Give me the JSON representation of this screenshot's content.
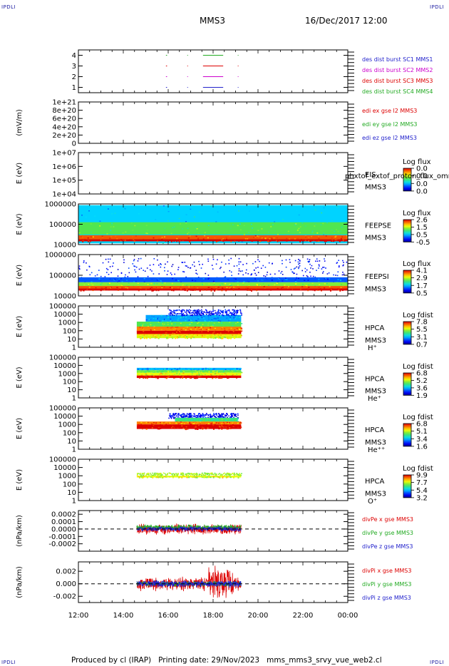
{
  "page": {
    "corner_label": "IPDLI",
    "mission": "MMS3",
    "date": "16/Dec/2017 12:00",
    "footer_producer": "Produced by cl (IRAP)",
    "footer_date": "Printing date: 29/Nov/2023",
    "footer_file": "mms_mms3_srvy_vue_web2.cl"
  },
  "chart_data": {
    "type": "stacked-timeseries",
    "x_ticks": [
      "12:00",
      "14:00",
      "16:00",
      "18:00",
      "20:00",
      "22:00",
      "00:00"
    ],
    "x_range_hours": [
      12,
      24
    ],
    "data_span_hours": [
      14.6,
      19.25
    ],
    "panels": [
      {
        "id": "des-burst",
        "type": "timeline",
        "ylabel": "",
        "yticks": [
          "4",
          "3",
          "2",
          "1"
        ],
        "ylim": [
          0.5,
          4.5
        ],
        "legend": [
          {
            "text": "des dist burst SC1 MMS1",
            "color": "#2222cc"
          },
          {
            "text": "des dist burst SC2 MMS2",
            "color": "#cc00cc"
          },
          {
            "text": "des dist burst SC3 MMS3",
            "color": "#dd0000"
          },
          {
            "text": "des dist burst SC4 MMS4",
            "color": "#22aa22"
          }
        ],
        "series": [
          {
            "level": 4,
            "color": "#22aa22",
            "intervals": [
              [
                15.9,
                15.95
              ],
              [
                16.85,
                16.88
              ],
              [
                17.55,
                18.45
              ],
              [
                19.1,
                19.13
              ]
            ]
          },
          {
            "level": 3,
            "color": "#dd0000",
            "intervals": [
              [
                15.9,
                15.95
              ],
              [
                16.85,
                16.88
              ],
              [
                17.55,
                18.45
              ],
              [
                19.1,
                19.13
              ]
            ]
          },
          {
            "level": 2,
            "color": "#cc00cc",
            "intervals": [
              [
                15.9,
                15.95
              ],
              [
                16.85,
                16.88
              ],
              [
                17.55,
                18.45
              ],
              [
                19.1,
                19.13
              ]
            ]
          },
          {
            "level": 1,
            "color": "#2222cc",
            "intervals": [
              [
                15.9,
                15.95
              ],
              [
                16.85,
                16.88
              ],
              [
                17.55,
                18.45
              ],
              [
                19.1,
                19.13
              ]
            ]
          }
        ]
      },
      {
        "id": "edi-e",
        "type": "line",
        "ylabel": "(mV/m)",
        "yticks": [
          "1e+21",
          "8e+20",
          "6e+20",
          "4e+20",
          "2e+20",
          "0"
        ],
        "ylim": [
          0,
          1e+21
        ],
        "dashed_zero": true,
        "legend": [
          {
            "text": "edi ex gse l2 MMS3",
            "color": "#dd0000"
          },
          {
            "text": "edi ey gse l2 MMS3",
            "color": "#22aa22"
          },
          {
            "text": "edi ez gse l2 MMS3",
            "color": "#2222cc"
          }
        ]
      },
      {
        "id": "eis",
        "type": "spectrogram",
        "ylabel": "E (eV)",
        "yticks": [
          "1e+07",
          "1e+06",
          "1e+05",
          "1e+04"
        ],
        "side_labels": [
          "EIS",
          "MMS3"
        ],
        "overlay_text": "phxtof_extof_proton_flux_omni",
        "cbar_title": "Log flux",
        "cbar_ticks": [
          "0.0",
          "0.0",
          "0.0",
          "0.0"
        ],
        "layers": []
      },
      {
        "id": "feeps-e",
        "type": "spectrogram",
        "ylabel": "E (eV)",
        "yticks": [
          "1000000",
          "100000",
          "10000"
        ],
        "side_labels": [
          "FEEPSE",
          "MMS3"
        ],
        "cbar_title": "Log flux",
        "cbar_ticks": [
          "2.6",
          "1.5",
          "0.5",
          "-0.5"
        ],
        "layers": [
          {
            "t": [
              12,
              24
            ],
            "y": [
              0.03,
              0.97
            ],
            "c": 0.35
          },
          {
            "t": [
              12,
              24
            ],
            "y": [
              0.25,
              0.55
            ],
            "c": 0.55
          },
          {
            "t": [
              12,
              24
            ],
            "y": [
              0.13,
              0.23
            ],
            "c": 0.9
          },
          {
            "t": [
              12,
              24
            ],
            "y": [
              0.08,
              0.13
            ],
            "c": 1.0
          }
        ]
      },
      {
        "id": "feeps-i",
        "type": "spectrogram",
        "ylabel": "E (eV)",
        "yticks": [
          "1000000",
          "100000",
          "10000"
        ],
        "side_labels": [
          "FEEPSI",
          "MMS3"
        ],
        "cbar_title": "Log flux",
        "cbar_ticks": [
          "4.1",
          "2.9",
          "1.7",
          "0.5"
        ],
        "layers": [
          {
            "t": [
              12,
              24
            ],
            "y": [
              0.45,
              0.92
            ],
            "c": 0.05,
            "dots": true
          },
          {
            "t": [
              12,
              24
            ],
            "y": [
              0.33,
              0.45
            ],
            "c": 0.22
          },
          {
            "t": [
              12,
              24
            ],
            "y": [
              0.24,
              0.33
            ],
            "c": 0.6
          },
          {
            "t": [
              12,
              24
            ],
            "y": [
              0.18,
              0.24
            ],
            "c": 0.9
          },
          {
            "t": [
              12,
              24
            ],
            "y": [
              0.13,
              0.18
            ],
            "c": 1.0
          }
        ]
      },
      {
        "id": "hpca-h",
        "type": "spectrogram",
        "ylabel": "E (eV)",
        "yticks": [
          "100000",
          "10000",
          "1000",
          "100",
          "10",
          "1"
        ],
        "side_labels": [
          "HPCA",
          "MMS3",
          "H⁺"
        ],
        "cbar_title": "Log fdist",
        "cbar_ticks": [
          "7.8",
          "5.5",
          "3.1",
          "0.7"
        ],
        "layers": [
          {
            "t": [
              15.0,
              19.25
            ],
            "y": [
              0.62,
              0.78
            ],
            "c": 0.3
          },
          {
            "t": [
              16.0,
              19.25
            ],
            "y": [
              0.78,
              0.92
            ],
            "c": 0.05,
            "dots": true
          },
          {
            "t": [
              14.6,
              19.25
            ],
            "y": [
              0.5,
              0.62
            ],
            "c": 0.55
          },
          {
            "t": [
              14.6,
              19.25
            ],
            "y": [
              0.4,
              0.5
            ],
            "c": 0.85
          },
          {
            "t": [
              14.6,
              19.25
            ],
            "y": [
              0.32,
              0.4
            ],
            "c": 1.0
          },
          {
            "t": [
              14.6,
              19.25
            ],
            "y": [
              0.28,
              0.32
            ],
            "c": 0.75
          },
          {
            "t": [
              14.6,
              19.25
            ],
            "y": [
              0.22,
              0.28
            ],
            "c": 0.68
          }
        ]
      },
      {
        "id": "hpca-he",
        "type": "spectrogram",
        "ylabel": "E (eV)",
        "yticks": [
          "100000",
          "10000",
          "1000",
          "100",
          "10",
          "1"
        ],
        "side_labels": [
          "HPCA",
          "MMS3",
          "He⁺"
        ],
        "cbar_title": "Log fdist",
        "cbar_ticks": [
          "6.8",
          "5.2",
          "3.6",
          "1.9"
        ],
        "layers": [
          {
            "t": [
              14.6,
              19.25
            ],
            "y": [
              0.68,
              0.74
            ],
            "c": 0.32
          },
          {
            "t": [
              14.6,
              19.25
            ],
            "y": [
              0.62,
              0.68
            ],
            "c": 0.58
          },
          {
            "t": [
              14.6,
              19.25
            ],
            "y": [
              0.55,
              0.62
            ],
            "c": 0.7
          },
          {
            "t": [
              14.6,
              19.25
            ],
            "y": [
              0.49,
              0.55
            ],
            "c": 1.0
          }
        ]
      },
      {
        "id": "hpca-hepp",
        "type": "spectrogram",
        "ylabel": "E (eV)",
        "yticks": [
          "100000",
          "10000",
          "1000",
          "100",
          "10",
          "1"
        ],
        "side_labels": [
          "HPCA",
          "MMS3",
          "He⁺⁺"
        ],
        "cbar_title": "Log fdist",
        "cbar_ticks": [
          "6.8",
          "5.1",
          "3.4",
          "1.6"
        ],
        "layers": [
          {
            "t": [
              16.0,
              19.1
            ],
            "y": [
              0.76,
              0.88
            ],
            "c": 0.05,
            "dots": true
          },
          {
            "t": [
              16.3,
              19.1
            ],
            "y": [
              0.67,
              0.76
            ],
            "c": 0.5
          },
          {
            "t": [
              14.6,
              19.25
            ],
            "y": [
              0.6,
              0.67
            ],
            "c": 0.85
          },
          {
            "t": [
              14.6,
              19.25
            ],
            "y": [
              0.49,
              0.6
            ],
            "c": 1.0
          }
        ]
      },
      {
        "id": "hpca-o",
        "type": "spectrogram",
        "ylabel": "E (eV)",
        "yticks": [
          "100000",
          "10000",
          "1000",
          "100",
          "10",
          "1"
        ],
        "side_labels": [
          "HPCA",
          "MMS3",
          "O⁺"
        ],
        "cbar_title": "Log fdist",
        "cbar_ticks": [
          "9.9",
          "7.7",
          "5.4",
          "3.2"
        ],
        "layers": [
          {
            "t": [
              14.6,
              19.25
            ],
            "y": [
              0.56,
              0.6
            ],
            "c": 0.7
          },
          {
            "t": [
              14.6,
              19.25
            ],
            "y": [
              0.62,
              0.68
            ],
            "c": 0.55,
            "dots": true
          }
        ]
      },
      {
        "id": "divpe",
        "type": "line",
        "ylabel": "(nPa/km)",
        "yticks": [
          "0.0002",
          "0.0001",
          "0.0000",
          "-0.0001",
          "-0.0002"
        ],
        "ylim": [
          -0.0003,
          0.00025
        ],
        "dashed_zero": true,
        "legend": [
          {
            "text": "divPe x gse MMS3",
            "color": "#dd0000"
          },
          {
            "text": "divPe y gse MMS3",
            "color": "#22aa22"
          },
          {
            "text": "divPe z gse MMS3",
            "color": "#2222cc"
          }
        ]
      },
      {
        "id": "divpi",
        "type": "line",
        "ylabel": "(nPa/km)",
        "yticks": [
          "0.002",
          "0.000",
          "-0.002"
        ],
        "ylim": [
          -0.003,
          0.0035
        ],
        "dashed_zero": true,
        "legend": [
          {
            "text": "divPi x gse MMS3",
            "color": "#dd0000"
          },
          {
            "text": "divPi y gse MMS3",
            "color": "#22aa22"
          },
          {
            "text": "divPi z gse MMS3",
            "color": "#2222cc"
          }
        ]
      }
    ]
  }
}
